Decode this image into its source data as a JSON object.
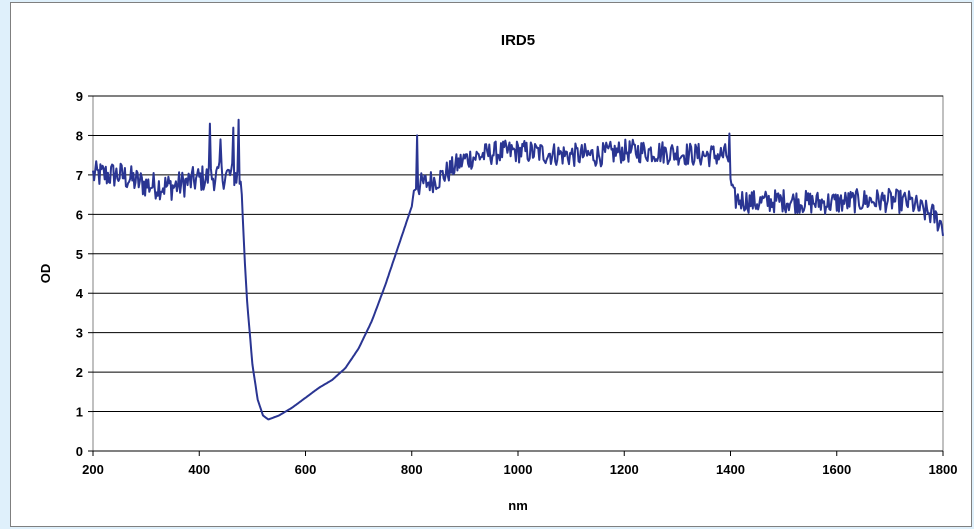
{
  "chart_data": {
    "type": "line",
    "title": "IRD5",
    "xlabel": "nm",
    "ylabel": "OD",
    "xlim": [
      200,
      1800
    ],
    "ylim": [
      0,
      9
    ],
    "xticks": [
      200,
      400,
      600,
      800,
      1000,
      1200,
      1400,
      1600,
      1800
    ],
    "yticks": [
      0,
      1,
      2,
      3,
      4,
      5,
      6,
      7,
      8,
      9
    ],
    "grid": "horizontal",
    "legend": "none",
    "series": [
      {
        "color": "#2a3592",
        "x": [
          200,
          250,
          300,
          350,
          400,
          450,
          475,
          480,
          485,
          490,
          500,
          510,
          520,
          530,
          540,
          550,
          575,
          600,
          625,
          650,
          675,
          700,
          725,
          750,
          775,
          790,
          800,
          805,
          850,
          900,
          950,
          1000,
          1050,
          1100,
          1150,
          1200,
          1250,
          1300,
          1350,
          1395,
          1400,
          1405,
          1450,
          1500,
          1550,
          1600,
          1650,
          1700,
          1740,
          1760,
          1780,
          1800
        ],
        "y": [
          7.0,
          7.0,
          6.75,
          6.7,
          6.9,
          7.0,
          7.0,
          6.5,
          5.0,
          3.8,
          2.2,
          1.3,
          0.9,
          0.8,
          0.85,
          0.9,
          1.1,
          1.35,
          1.6,
          1.8,
          2.1,
          2.6,
          3.3,
          4.2,
          5.2,
          5.8,
          6.2,
          6.7,
          6.9,
          7.4,
          7.55,
          7.6,
          7.55,
          7.5,
          7.5,
          7.6,
          7.6,
          7.55,
          7.5,
          7.5,
          6.9,
          6.4,
          6.3,
          6.35,
          6.3,
          6.3,
          6.35,
          6.35,
          6.3,
          6.1,
          6.0,
          5.7
        ],
        "noise": [
          {
            "x_from": 200,
            "x_to": 478,
            "amp": 0.35
          },
          {
            "x_from": 805,
            "x_to": 1398,
            "amp": 0.3
          },
          {
            "x_from": 1402,
            "x_to": 1800,
            "amp": 0.3
          }
        ],
        "spikes": [
          {
            "x": 420,
            "y": 8.3
          },
          {
            "x": 440,
            "y": 7.9
          },
          {
            "x": 465,
            "y": 8.2
          },
          {
            "x": 475,
            "y": 8.4
          },
          {
            "x": 810,
            "y": 8.0
          },
          {
            "x": 1398,
            "y": 8.05
          }
        ]
      }
    ]
  }
}
